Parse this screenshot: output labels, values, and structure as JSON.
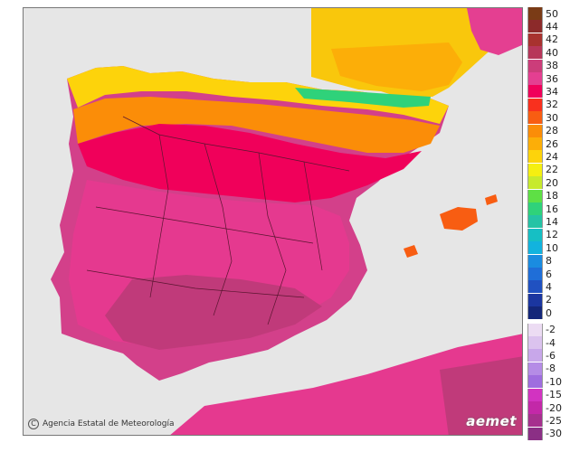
{
  "map": {
    "title": "",
    "credit": "Agencia Estatal de Meteorología",
    "credit_symbol": "C",
    "brand": "aemet",
    "regions": {
      "land_base": "#d3408a",
      "sea": "#e6e6e6",
      "warm_high": "#e5398f",
      "hot_core": "#c03a7a"
    }
  },
  "legend": {
    "positive": [
      {
        "label": "50",
        "color": "#7a3b16"
      },
      {
        "label": "44",
        "color": "#8c2a2a"
      },
      {
        "label": "42",
        "color": "#a8322f"
      },
      {
        "label": "40",
        "color": "#b7365a"
      },
      {
        "label": "38",
        "color": "#cc3d7a"
      },
      {
        "label": "36",
        "color": "#e43f91"
      },
      {
        "label": "34",
        "color": "#f0005a"
      },
      {
        "label": "32",
        "color": "#f9301e"
      },
      {
        "label": "30",
        "color": "#f85d12"
      },
      {
        "label": "28",
        "color": "#fb8d08"
      },
      {
        "label": "26",
        "color": "#fcae08"
      },
      {
        "label": "24",
        "color": "#fdd30b"
      },
      {
        "label": "22",
        "color": "#f5ef11"
      },
      {
        "label": "20",
        "color": "#c7ea2c"
      },
      {
        "label": "18",
        "color": "#5ee045"
      },
      {
        "label": "16",
        "color": "#2fd27a"
      },
      {
        "label": "14",
        "color": "#25c3a5"
      },
      {
        "label": "12",
        "color": "#16bfc4"
      },
      {
        "label": "10",
        "color": "#12b3de"
      },
      {
        "label": "8",
        "color": "#1a8ce0"
      },
      {
        "label": "6",
        "color": "#1f6ed8"
      },
      {
        "label": "4",
        "color": "#2051c1"
      },
      {
        "label": "2",
        "color": "#1b36a0"
      },
      {
        "label": "0",
        "color": "#132679"
      }
    ],
    "negative": [
      {
        "label": "-2",
        "color": "#ecdcf3"
      },
      {
        "label": "-4",
        "color": "#dbc3ee"
      },
      {
        "label": "-6",
        "color": "#c8a7ea"
      },
      {
        "label": "-8",
        "color": "#b58ce6"
      },
      {
        "label": "-10",
        "color": "#9f6ddf"
      },
      {
        "label": "-15",
        "color": "#d233c1"
      },
      {
        "label": "-20",
        "color": "#c328a8"
      },
      {
        "label": "-25",
        "color": "#a6308e"
      },
      {
        "label": "-30",
        "color": "#8b2f85"
      }
    ]
  }
}
